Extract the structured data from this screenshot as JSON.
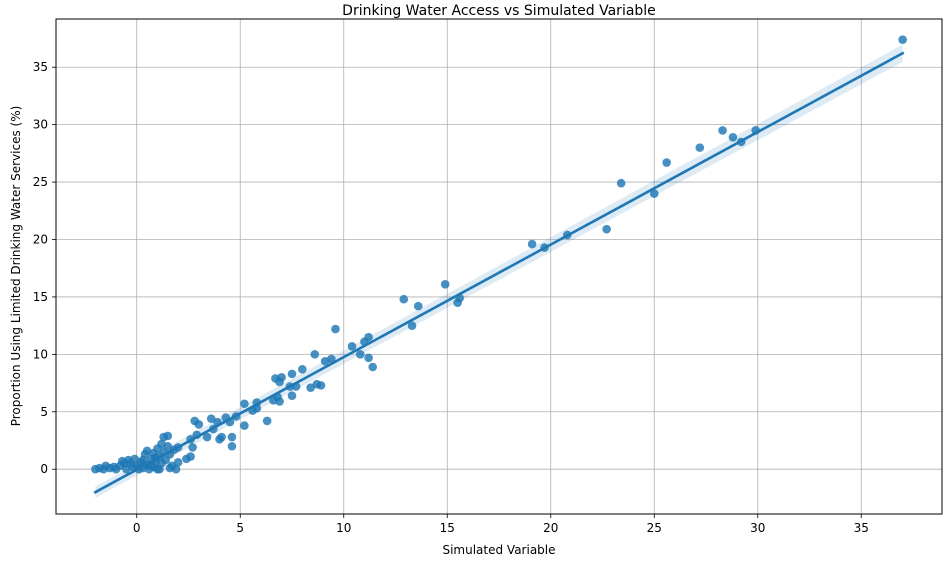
{
  "chart_data": {
    "type": "scatter",
    "title": "Drinking Water Access vs Simulated Variable",
    "xlabel": "Simulated Variable",
    "ylabel": "Proportion Using Limited Drinking Water Services (%)",
    "xlim": [
      -3.9,
      38.9
    ],
    "ylim": [
      -3.9,
      39.2
    ],
    "xticks": [
      0,
      5,
      10,
      15,
      20,
      25,
      30,
      35
    ],
    "yticks": [
      0,
      5,
      10,
      15,
      20,
      25,
      30,
      35
    ],
    "grid": true,
    "point_color": "#1f77b4",
    "line_color": "#1f77b4",
    "band_color": "#1f77b4",
    "regression": {
      "x_range": [
        -2.0,
        37.0
      ],
      "slope": 0.98,
      "intercept": -0.04,
      "ci_halfwidth_start": 0.5,
      "ci_halfwidth_end": 0.75
    },
    "points": [
      [
        -2.0,
        0.0
      ],
      [
        -1.8,
        0.1
      ],
      [
        -1.6,
        0.0
      ],
      [
        -1.5,
        0.3
      ],
      [
        -1.3,
        0.1
      ],
      [
        -1.1,
        0.2
      ],
      [
        -1.0,
        0.0
      ],
      [
        -0.8,
        0.3
      ],
      [
        -0.7,
        0.7
      ],
      [
        -0.6,
        0.5
      ],
      [
        -0.5,
        0.0
      ],
      [
        -0.4,
        0.8
      ],
      [
        -0.3,
        0.5
      ],
      [
        -0.2,
        0.2
      ],
      [
        -0.1,
        0.9
      ],
      [
        0.0,
        0.3
      ],
      [
        0.1,
        0.0
      ],
      [
        0.2,
        0.6
      ],
      [
        0.3,
        0.1
      ],
      [
        0.4,
        1.3
      ],
      [
        0.5,
        1.6
      ],
      [
        0.5,
        0.4
      ],
      [
        0.6,
        0.0
      ],
      [
        0.7,
        0.9
      ],
      [
        0.8,
        1.4
      ],
      [
        0.8,
        0.2
      ],
      [
        0.9,
        0.6
      ],
      [
        1.0,
        1.8
      ],
      [
        1.0,
        0.0
      ],
      [
        1.1,
        1.1
      ],
      [
        1.2,
        2.2
      ],
      [
        1.2,
        0.5
      ],
      [
        1.3,
        2.8
      ],
      [
        1.3,
        1.5
      ],
      [
        1.4,
        0.8
      ],
      [
        1.5,
        2.0
      ],
      [
        1.5,
        2.9
      ],
      [
        1.6,
        1.3
      ],
      [
        1.7,
        0.3
      ],
      [
        1.8,
        1.7
      ],
      [
        1.9,
        0.0
      ],
      [
        2.0,
        0.6
      ],
      [
        2.0,
        1.9
      ],
      [
        1.1,
        0.0
      ],
      [
        0.3,
        0.8
      ],
      [
        0.9,
        1.0
      ],
      [
        1.6,
        0.1
      ],
      [
        0.7,
        0.3
      ],
      [
        2.4,
        0.9
      ],
      [
        2.6,
        1.1
      ],
      [
        2.6,
        2.6
      ],
      [
        2.7,
        1.9
      ],
      [
        2.8,
        4.2
      ],
      [
        2.9,
        3.0
      ],
      [
        3.0,
        3.9
      ],
      [
        3.4,
        2.8
      ],
      [
        3.6,
        4.4
      ],
      [
        3.7,
        3.5
      ],
      [
        3.9,
        4.1
      ],
      [
        4.0,
        2.6
      ],
      [
        4.1,
        2.8
      ],
      [
        4.3,
        4.5
      ],
      [
        4.5,
        4.1
      ],
      [
        4.6,
        2.0
      ],
      [
        4.6,
        2.8
      ],
      [
        4.8,
        4.6
      ],
      [
        5.2,
        5.7
      ],
      [
        5.2,
        3.8
      ],
      [
        5.6,
        5.1
      ],
      [
        5.8,
        5.8
      ],
      [
        5.8,
        5.3
      ],
      [
        6.3,
        4.2
      ],
      [
        6.6,
        6.0
      ],
      [
        6.7,
        7.9
      ],
      [
        6.8,
        6.3
      ],
      [
        6.9,
        7.6
      ],
      [
        6.9,
        5.9
      ],
      [
        7.0,
        8.0
      ],
      [
        7.4,
        7.2
      ],
      [
        7.5,
        8.3
      ],
      [
        7.5,
        6.4
      ],
      [
        7.7,
        7.2
      ],
      [
        8.0,
        8.7
      ],
      [
        8.4,
        7.1
      ],
      [
        8.6,
        10.0
      ],
      [
        8.7,
        7.4
      ],
      [
        8.9,
        7.3
      ],
      [
        9.1,
        9.4
      ],
      [
        9.4,
        9.6
      ],
      [
        9.6,
        12.2
      ],
      [
        10.4,
        10.7
      ],
      [
        10.8,
        10.0
      ],
      [
        11.0,
        11.1
      ],
      [
        11.2,
        11.5
      ],
      [
        11.2,
        9.7
      ],
      [
        11.4,
        8.9
      ],
      [
        12.9,
        14.8
      ],
      [
        13.3,
        12.5
      ],
      [
        13.6,
        14.2
      ],
      [
        14.9,
        16.1
      ],
      [
        15.5,
        14.5
      ],
      [
        15.6,
        14.9
      ],
      [
        19.1,
        19.6
      ],
      [
        19.7,
        19.3
      ],
      [
        20.8,
        20.4
      ],
      [
        22.7,
        20.9
      ],
      [
        23.4,
        24.9
      ],
      [
        25.0,
        24.0
      ],
      [
        25.6,
        26.7
      ],
      [
        27.2,
        28.0
      ],
      [
        28.3,
        29.5
      ],
      [
        28.8,
        28.9
      ],
      [
        29.2,
        28.5
      ],
      [
        29.9,
        29.5
      ],
      [
        37.0,
        37.4
      ]
    ]
  }
}
